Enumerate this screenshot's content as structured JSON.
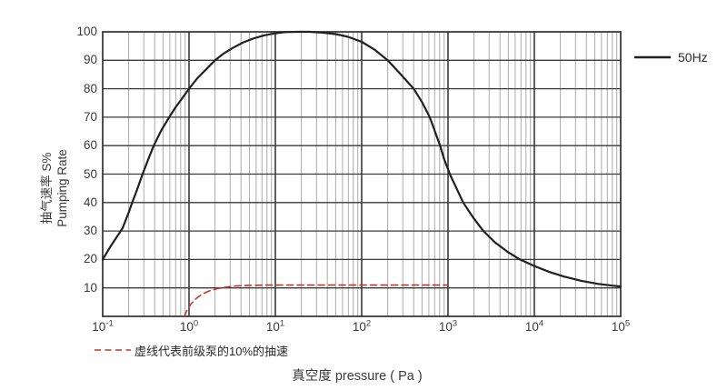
{
  "chart_data": {
    "type": "line",
    "title": "",
    "x_scale": "log",
    "xlim": [
      0.1,
      100000
    ],
    "ylim": [
      0,
      100
    ],
    "xlabel": "真空度 pressure ( Pa )",
    "ylabel": [
      "抽气速率 S%",
      "Pumping Rate"
    ],
    "x_tick_base": "10",
    "x_tick_exponents": [
      "-1",
      "0",
      "1",
      "2",
      "3",
      "4",
      "5"
    ],
    "y_ticks": [
      100,
      90,
      80,
      70,
      60,
      50,
      40,
      30,
      20,
      10
    ],
    "grid": {
      "major_color": "#3a3a3a",
      "minor_color": "#ababab",
      "border_color": "#2f2f2f",
      "minor_on": true
    },
    "legend": {
      "label": "50Hz",
      "line_color": "#231f20",
      "position": "top-right"
    },
    "annotation": {
      "text": "虚线代表前级泵的10%的抽速",
      "dash_color": "#c9302c"
    },
    "series": [
      {
        "name": "50Hz",
        "color": "#231f20",
        "style": "solid",
        "points": [
          [
            0.1,
            20
          ],
          [
            0.12,
            24
          ],
          [
            0.15,
            28.5
          ],
          [
            0.17,
            31
          ],
          [
            0.2,
            36.5
          ],
          [
            0.22,
            40
          ],
          [
            0.25,
            44.5
          ],
          [
            0.29,
            50
          ],
          [
            0.34,
            55.5
          ],
          [
            0.39,
            60
          ],
          [
            0.48,
            65.5
          ],
          [
            0.59,
            70
          ],
          [
            0.7,
            73.5
          ],
          [
            0.85,
            77
          ],
          [
            1,
            80
          ],
          [
            1.25,
            83.7
          ],
          [
            1.6,
            87
          ],
          [
            2,
            90
          ],
          [
            2.5,
            92.3
          ],
          [
            3.2,
            94.3
          ],
          [
            4.2,
            96.2
          ],
          [
            5.5,
            97.6
          ],
          [
            7.5,
            98.8
          ],
          [
            10,
            99.5
          ],
          [
            13,
            99.9
          ],
          [
            18,
            100
          ],
          [
            25,
            100
          ],
          [
            35,
            99.7
          ],
          [
            50,
            99.2
          ],
          [
            70,
            98.2
          ],
          [
            100,
            96.5
          ],
          [
            140,
            93.8
          ],
          [
            200,
            90
          ],
          [
            280,
            85.2
          ],
          [
            400,
            80
          ],
          [
            500,
            75.3
          ],
          [
            615,
            70
          ],
          [
            810,
            60
          ],
          [
            900,
            55.3
          ],
          [
            1050,
            50
          ],
          [
            1500,
            40
          ],
          [
            2000,
            34.3
          ],
          [
            2570,
            30
          ],
          [
            3500,
            26
          ],
          [
            5000,
            22.5
          ],
          [
            6800,
            20
          ],
          [
            10000,
            17.7
          ],
          [
            15000,
            15.6
          ],
          [
            22000,
            14
          ],
          [
            35000,
            12.5
          ],
          [
            55000,
            11.4
          ],
          [
            80000,
            10.8
          ],
          [
            100000,
            10.5
          ]
        ]
      },
      {
        "name": "虚线代表前级泵的10%的抽速",
        "color": "#c9302c",
        "style": "dashed",
        "points": [
          [
            0.88,
            0
          ],
          [
            0.95,
            2.2
          ],
          [
            1.05,
            4.3
          ],
          [
            1.2,
            6.2
          ],
          [
            1.4,
            7.7
          ],
          [
            1.7,
            8.9
          ],
          [
            2.1,
            9.7
          ],
          [
            2.7,
            10.3
          ],
          [
            3.5,
            10.7
          ],
          [
            5,
            10.9
          ],
          [
            8,
            11
          ],
          [
            20,
            11
          ],
          [
            100,
            11
          ],
          [
            500,
            11
          ],
          [
            1000,
            11
          ]
        ]
      }
    ]
  }
}
